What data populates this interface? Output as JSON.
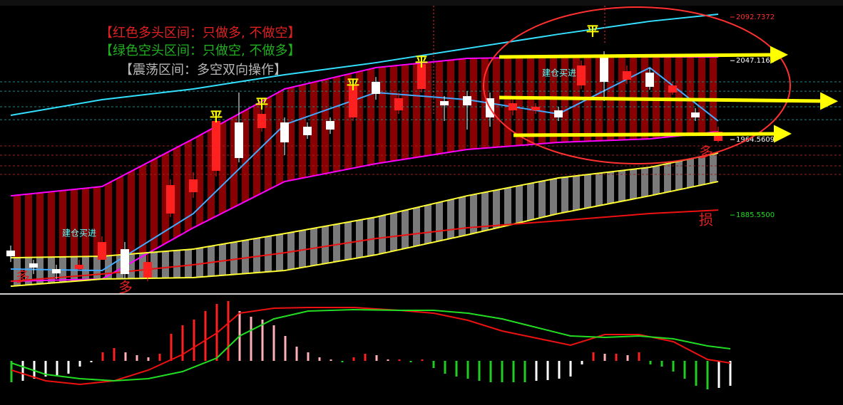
{
  "chart_data": [
    {
      "type": "candlestick",
      "open": [
        1848.4,
        1835.0,
        1829.0,
        1829.0,
        1838.7,
        1849.9,
        1820.1,
        1887.1,
        1909.5,
        1931.8,
        1982.5,
        1976.5,
        1982.5,
        1978.0,
        1984.0,
        1987.7,
        2024.9,
        1995.1,
        2017.5,
        2004.8,
        2010.0,
        2007.8,
        1995.1,
        1995.1,
        1995.1,
        2021.2,
        2052.5,
        2027.2,
        2034.6,
        2013.8,
        1992.9,
        1963.1
      ],
      "high": [
        1853.6,
        1838.7,
        1833.5,
        1838.7,
        1863.3,
        1857.3,
        1843.9,
        1922.9,
        1930.3,
        1991.4,
        2013.8,
        1998.9,
        1987.7,
        1982.5,
        1987.7,
        2028.7,
        2030.1,
        2013.8,
        2051.0,
        2010.0,
        2015.2,
        2013.8,
        2007.8,
        2002.6,
        1998.9,
        2047.3,
        2057.0,
        2042.1,
        2039.1,
        2024.9,
        1997.4,
        1978.0
      ],
      "low": [
        1836.4,
        1823.8,
        1818.6,
        1827.5,
        1838.7,
        1818.6,
        1816.3,
        1883.4,
        1903.5,
        1925.8,
        1940.7,
        1972.8,
        1948.2,
        1965.3,
        1970.5,
        1984.0,
        2006.3,
        1991.4,
        2013.8,
        1984.0,
        1975.0,
        1978.0,
        1989.9,
        1991.4,
        1984.0,
        2017.5,
        2004.8,
        2022.7,
        2016.7,
        2011.5,
        1984.0,
        1961.6
      ],
      "close": [
        1842.4,
        1830.5,
        1824.5,
        1833.5,
        1857.3,
        1823.8,
        1836.4,
        1916.9,
        1922.9,
        1984.0,
        1945.2,
        1991.4,
        1961.6,
        1969.1,
        1975.0,
        2021.2,
        2012.3,
        2007.8,
        2043.6,
        2000.3,
        2000.3,
        1987.7,
        2002.6,
        1998.9,
        1987.7,
        2042.1,
        2024.9,
        2036.1,
        2019.7,
        2021.2,
        1987.7,
        1972.8
      ],
      "up_color": "#ff2020",
      "down_color": "#ffffff",
      "ylim": [
        1805.2,
        2110.6
      ],
      "yticks": [
        2092.7372,
        2047.1166,
        1964.5609,
        {
          "value": 1885.55,
          "label": "1885.5500"
        }
      ],
      "ytick_colors": [
        "#ff3030",
        "#ffffff",
        "#ffffff",
        "#22dd22"
      ],
      "series": [
        {
          "color": "#ff00ff",
          "x": [
            0,
            4,
            8,
            12,
            16,
            20,
            24,
            28,
            31
          ],
          "values": [
            1905.7,
            1915.4,
            1965.3,
            2017.5,
            2039.8,
            2049.5,
            2051.0,
            2051.0,
            2051.0
          ]
        },
        {
          "color": "#ff00ff",
          "x": [
            0,
            4,
            8,
            12,
            16,
            20,
            24,
            28,
            31
          ],
          "values": [
            1816.3,
            1818.6,
            1872.2,
            1920.6,
            1939.3,
            1954.2,
            1961.6,
            1965.3,
            1972.8
          ]
        },
        {
          "color": "#ffff33",
          "x": [
            0,
            4,
            8,
            12,
            16,
            20,
            24,
            28,
            31
          ],
          "values": [
            1840.9,
            1842.4,
            1849.9,
            1866.2,
            1883.4,
            1905.7,
            1924.4,
            1935.5,
            1950.4
          ]
        },
        {
          "color": "#ffff33",
          "x": [
            0,
            4,
            8,
            12,
            16,
            20,
            24,
            28,
            31
          ],
          "values": [
            1811.1,
            1818.6,
            1820.1,
            1827.5,
            1843.9,
            1864.8,
            1887.1,
            1905.7,
            1920.6
          ]
        },
        {
          "color": "#33e0ff",
          "x": [
            0,
            4,
            8,
            12,
            16,
            20,
            24,
            28,
            31
          ],
          "values": [
            1989.9,
            2006.3,
            2017.5,
            2032.4,
            2045.0,
            2059.9,
            2074.8,
            2088.3,
            2095.7
          ]
        },
        {
          "color": "#ee1111",
          "x": [
            0,
            4,
            8,
            12,
            16,
            20,
            24,
            28,
            31
          ],
          "values": [
            1816.3,
            1823.8,
            1833.5,
            1846.1,
            1861.0,
            1872.2,
            1879.6,
            1887.1,
            1890.8
          ]
        },
        {
          "color": "#44aaff",
          "x": [
            0,
            4,
            8,
            12,
            16,
            20,
            24,
            28,
            31
          ],
          "values": [
            1829.0,
            1827.5,
            1887.1,
            1980.2,
            2013.8,
            2006.3,
            1991.4,
            2039.8,
            1984.0
          ]
        }
      ],
      "levels": [
        {
          "value": 2024.9,
          "color": "#1a8a8a"
        },
        {
          "value": 2015.2,
          "color": "#1a8a8a"
        },
        {
          "value": 1998.9,
          "color": "#1a8a8a"
        },
        {
          "value": 1985.4,
          "color": "#1a8a8a"
        },
        {
          "value": 1957.9,
          "color": "#a02020"
        },
        {
          "value": 1948.2,
          "color": "#a02020"
        },
        {
          "value": 1937.0,
          "color": "#a02020"
        },
        {
          "value": 1928.1,
          "color": "#a02020"
        }
      ],
      "notes": [
        "【红色多头区间：只做多, 不做空】",
        "【绿色空头区间：只做空, 不做多】",
        "【震荡区间：多空双向操作】"
      ],
      "signals": [
        "平",
        "平",
        "平",
        "平",
        "平"
      ],
      "buy_labels": [
        "建仓买进",
        "建仓买进"
      ],
      "long_labels": [
        "多",
        "多",
        "多"
      ],
      "stop_label": "损"
    },
    {
      "type": "histogram",
      "values": [
        -30,
        -28,
        -25,
        -22,
        -20,
        -18,
        -8,
        -2,
        12,
        18,
        12,
        8,
        5,
        10,
        38,
        50,
        58,
        70,
        80,
        84,
        70,
        62,
        58,
        50,
        35,
        20,
        12,
        5,
        2,
        -2,
        5,
        10,
        8,
        2,
        2,
        -2,
        2,
        -10,
        -18,
        -22,
        -25,
        -28,
        -30,
        -30,
        -30,
        -30,
        -28,
        -27,
        -25,
        -22,
        -5,
        12,
        10,
        10,
        8,
        12,
        -5,
        -8,
        -15,
        -25,
        -35,
        -40,
        -38,
        -35
      ],
      "colors": {
        "up_rising": "#ff2020",
        "up_falling": "#ffb0b8",
        "down_falling": "#22cc22",
        "down_rising": "#ffffff"
      },
      "ylim": [
        -53,
        87
      ],
      "series": [
        {
          "color": "#ee1111",
          "x": [
            0,
            3,
            6,
            9,
            12,
            15,
            18,
            20,
            23,
            26,
            30,
            34,
            37,
            40,
            43,
            46,
            49,
            52,
            55,
            58,
            61,
            63
          ],
          "values": [
            -13,
            -28,
            -33,
            -28,
            -13,
            9,
            39,
            67,
            74,
            75,
            75,
            71,
            67,
            57,
            42,
            32,
            22,
            37,
            37,
            27,
            2,
            -3
          ]
        },
        {
          "color": "#22dd22",
          "x": [
            0,
            3,
            6,
            9,
            12,
            15,
            18,
            20,
            23,
            26,
            30,
            34,
            37,
            40,
            43,
            46,
            49,
            52,
            55,
            58,
            61,
            63
          ],
          "values": [
            -3,
            -19,
            -25,
            -28,
            -25,
            -15,
            4,
            35,
            59,
            70,
            72,
            71,
            71,
            67,
            59,
            47,
            35,
            33,
            35,
            31,
            21,
            17
          ]
        }
      ]
    }
  ]
}
